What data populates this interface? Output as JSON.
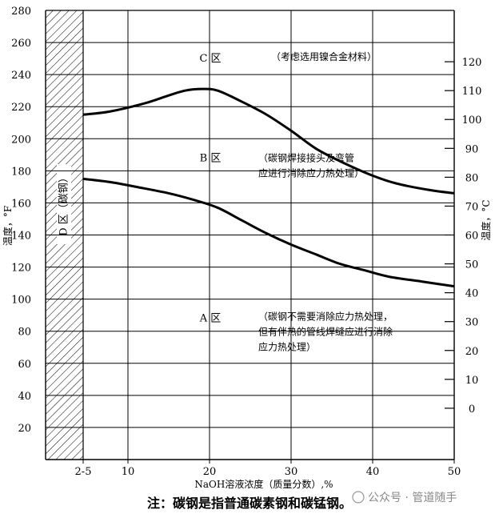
{
  "chart_data": {
    "type": "line",
    "xlabel": "NaOH溶液浓度（质量分数）,%",
    "ylabel_left": "温度，°F",
    "ylabel_right": "温度，°C",
    "x_tick_labels": [
      "2-5",
      "10",
      "20",
      "30",
      "40",
      "50"
    ],
    "x_tick_values": [
      2,
      10,
      20,
      30,
      40,
      50
    ],
    "xlim": [
      0,
      50
    ],
    "ylim": [
      0,
      280
    ],
    "y_left_ticks": [
      20,
      40,
      60,
      80,
      100,
      120,
      140,
      160,
      180,
      200,
      220,
      240,
      260,
      280
    ],
    "y_right_ticks_celsius": [
      0,
      10,
      20,
      30,
      40,
      50,
      60,
      70,
      80,
      90,
      100,
      110,
      120
    ],
    "grid": true,
    "hatched_region": {
      "x_from": 0,
      "x_to": 5,
      "label": "D 区（碳钢）"
    },
    "series": [
      {
        "x": [
          5,
          8,
          12,
          15,
          17,
          19,
          21,
          24,
          27,
          30,
          33,
          36,
          40,
          43,
          47,
          50
        ],
        "y": [
          215,
          217,
          222,
          227,
          230,
          231,
          230,
          223,
          215,
          205,
          194,
          186,
          177,
          172,
          168,
          166
        ]
      },
      {
        "x": [
          5,
          8,
          11,
          15,
          18,
          21,
          24,
          27,
          30,
          33,
          36,
          39,
          42,
          46,
          50
        ],
        "y": [
          175,
          173,
          170,
          166,
          162,
          157,
          149,
          141,
          134,
          128,
          122,
          118,
          114,
          111,
          108
        ]
      }
    ],
    "zones": [
      {
        "label": "C 区",
        "note": [
          "（考虑选用镍合金材料）"
        ],
        "x": 15,
        "y": 248
      },
      {
        "label": "B 区",
        "note": [
          "（碳钢焊接接头及弯管",
          "应进行消除应力热处理）"
        ],
        "x": 15,
        "y": 186
      },
      {
        "label": "A 区",
        "note": [
          "（碳钢不需要消除应力热处理，",
          "但有伴热的管线焊缝应进行消除",
          "应力热处理）"
        ],
        "x": 15,
        "y": 86
      }
    ]
  },
  "footnote": "注：碳钢是指普通碳素钢和碳锰钢。",
  "watermark": "公众号 · 管道随手"
}
